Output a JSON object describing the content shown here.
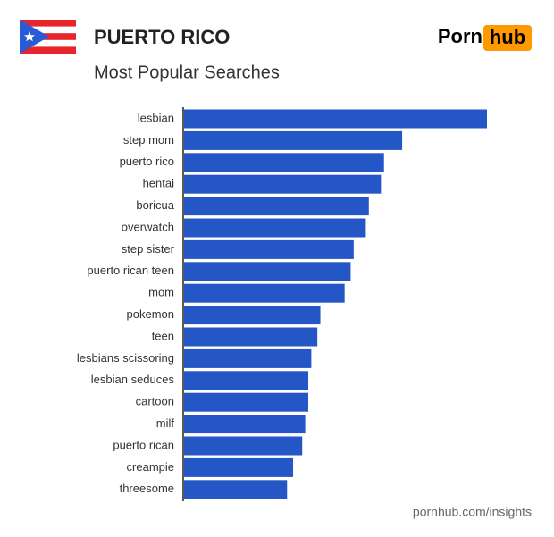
{
  "header": {
    "title": "PUERTO RICO",
    "logo_left": "Porn",
    "logo_right": "hub"
  },
  "chart_data": {
    "type": "bar",
    "orientation": "horizontal",
    "title": "Most Popular Searches",
    "categories": [
      "lesbian",
      "step mom",
      "puerto rico",
      "hentai",
      "boricua",
      "overwatch",
      "step sister",
      "puerto rican teen",
      "mom",
      "pokemon",
      "teen",
      "lesbians scissoring",
      "lesbian seduces",
      "cartoon",
      "milf",
      "puerto rican",
      "creampie",
      "threesome"
    ],
    "values": [
      100,
      72,
      66,
      65,
      61,
      60,
      56,
      55,
      53,
      45,
      44,
      42,
      41,
      41,
      40,
      39,
      36,
      34
    ],
    "color": "#2457c5"
  },
  "footer": {
    "source": "pornhub.com/insights"
  }
}
